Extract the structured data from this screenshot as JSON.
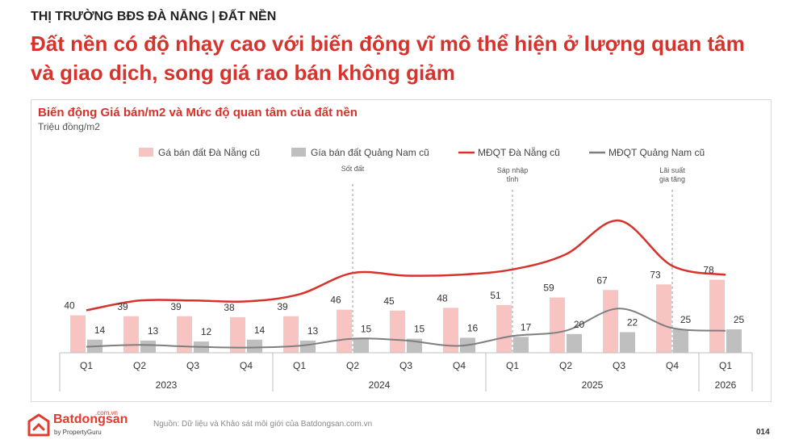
{
  "header": {
    "kicker": "THỊ TRƯỜNG BĐS ĐÀ NẴNG | ĐẤT NỀN",
    "headline": "Đất nền có độ nhạy cao với biến động vĩ mô thể hiện ở lượng quan tâm và giao dịch, song giá rao bán không giảm"
  },
  "chart_data": {
    "type": "bar",
    "title": "Biến động Giá bán/m2 và Mức độ quan tâm của đất nền",
    "ylabel": "Triệu đồng/m2",
    "categories": [
      "Q1",
      "Q2",
      "Q3",
      "Q4",
      "Q1",
      "Q2",
      "Q3",
      "Q4",
      "Q1",
      "Q2",
      "Q3",
      "Q4",
      "Q1"
    ],
    "years": [
      {
        "label": "2023",
        "span": 4
      },
      {
        "label": "2024",
        "span": 4
      },
      {
        "label": "2025",
        "span": 4
      },
      {
        "label": "2026",
        "span": 1
      }
    ],
    "series": [
      {
        "name": "Gá bán đất Đà Nẵng cũ",
        "kind": "bar",
        "color": "#f7c4c2",
        "values": [
          40,
          39,
          39,
          38,
          39,
          46,
          45,
          48,
          51,
          59,
          67,
          73,
          78
        ]
      },
      {
        "name": "Gía bán đất Quảng Nam cũ",
        "kind": "bar",
        "color": "#bfbfbf",
        "values": [
          14,
          13,
          12,
          14,
          13,
          15,
          15,
          16,
          17,
          20,
          22,
          25,
          25
        ]
      },
      {
        "name": "MĐQT Đà Nẵng cũ",
        "kind": "line",
        "color": "#d7322b",
        "values": [
          46,
          57,
          57,
          56,
          64,
          88,
          85,
          86,
          92,
          109,
          147,
          96,
          86
        ]
      },
      {
        "name": "MĐQT Quảng Nam cũ",
        "kind": "line",
        "color": "#7f7f7f",
        "values": [
          5,
          7,
          5,
          4,
          6,
          14,
          12,
          6,
          17,
          23,
          48,
          26,
          23
        ]
      }
    ],
    "annotations": [
      {
        "lines": [
          "Sốt đất"
        ],
        "after_index": 5
      },
      {
        "lines": [
          "Sáp nhập",
          "tỉnh"
        ],
        "after_index": 8
      },
      {
        "lines": [
          "Lãi suất",
          "gia tăng"
        ],
        "after_index": 11
      }
    ],
    "legend_position": "top",
    "grid": false
  },
  "footer": {
    "brand": "Batdongsan",
    "brand_tld": ".com.vn",
    "brand_sub": "by PropertyGuru",
    "source": "Nguồn: Dữ liệu và Khảo sát môi giới của Batdongsan.com.vn",
    "page": "014"
  }
}
